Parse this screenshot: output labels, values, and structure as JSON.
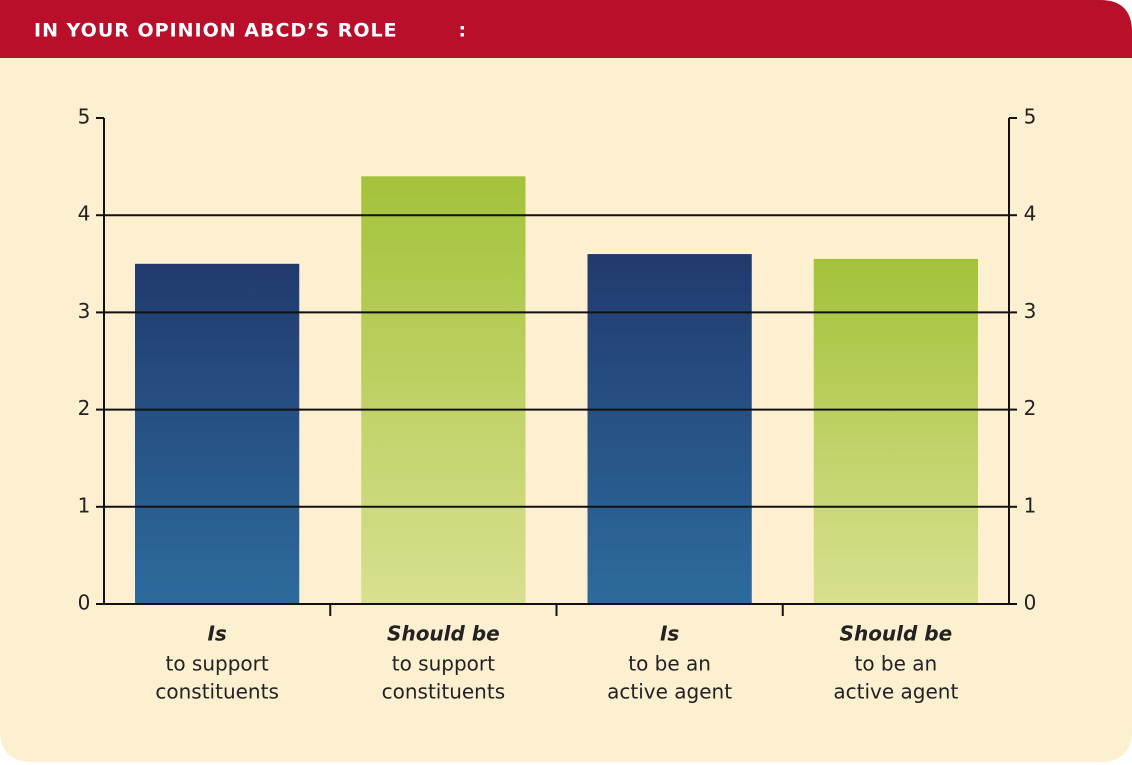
{
  "chart_data": {
    "type": "bar",
    "title": "IN YOUR OPINION ABCD’S ROLE        :",
    "categories": [
      {
        "emphasis": "Is",
        "lines": [
          "to support",
          "constituents"
        ]
      },
      {
        "emphasis": "Should be",
        "lines": [
          "to support",
          "constituents"
        ]
      },
      {
        "emphasis": "Is",
        "lines": [
          "to be an",
          "active agent"
        ]
      },
      {
        "emphasis": "Should be",
        "lines": [
          "to be an",
          "active agent"
        ]
      }
    ],
    "values": [
      3.5,
      4.4,
      3.6,
      3.55
    ],
    "colors": [
      [
        "#213a6e",
        "#2d6b9d"
      ],
      [
        "#a3c23a",
        "#d8e08f"
      ],
      [
        "#213a6e",
        "#2d6b9d"
      ],
      [
        "#a3c23a",
        "#d8e08f"
      ]
    ],
    "ylim": [
      0,
      5
    ],
    "yticks": [
      0,
      1,
      2,
      3,
      4,
      5
    ],
    "y2lim": [
      0,
      5
    ],
    "y2ticks": [
      0,
      1,
      2,
      3,
      4,
      5
    ],
    "grid": true
  }
}
